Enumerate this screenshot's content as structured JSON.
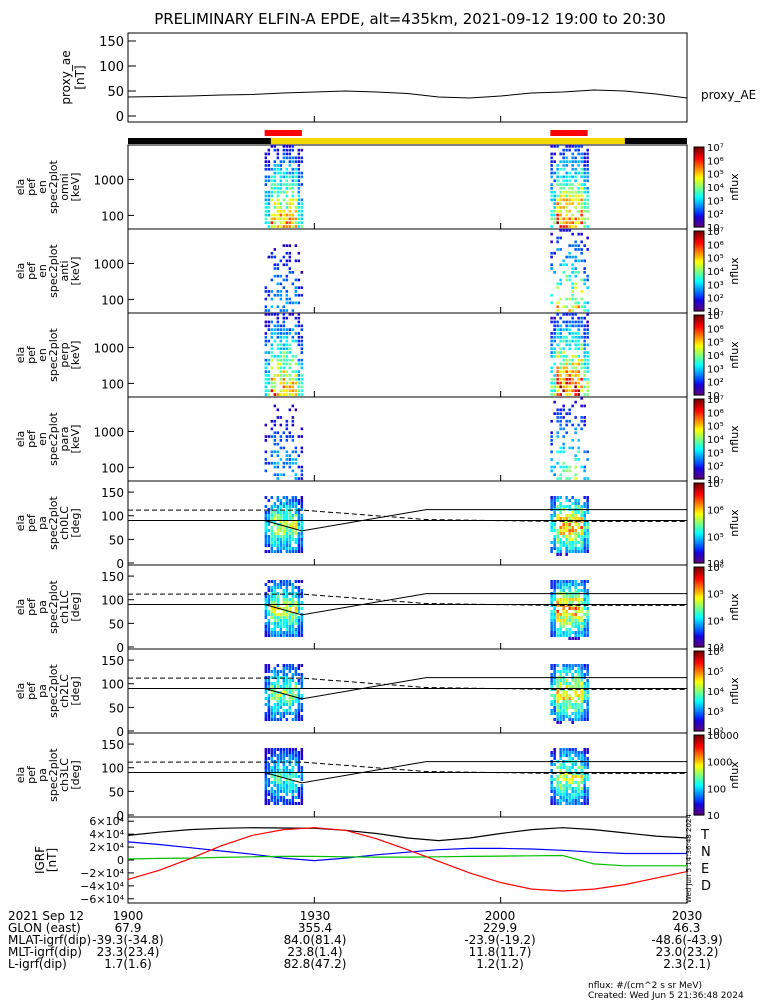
{
  "title": "PRELIMINARY ELFIN-A EPDE, alt=435km, 2021-09-12 19:00 to 20:30",
  "colors": {
    "ae_bar_black": "#000000",
    "ae_bar_yellow": "#f5d800",
    "sci_zone": "#ff0000",
    "T": "#000000",
    "N": "#0000ff",
    "E": "#00c000",
    "D": "#ff0000"
  },
  "chart_data": [
    {
      "type": "line",
      "panel": "proxy_ae",
      "ylabel_lines": [
        "proxy_ae",
        "[nT]"
      ],
      "yticks": [
        "0",
        "50",
        "100",
        "150"
      ],
      "ylim": [
        0,
        160
      ],
      "legend": "proxy_AE",
      "x": [
        0,
        5,
        10,
        15,
        20,
        25,
        30,
        35,
        40,
        45,
        50,
        55,
        60,
        65,
        70,
        75,
        80,
        85,
        90
      ],
      "values": [
        38,
        39,
        40,
        42,
        43,
        46,
        48,
        50,
        48,
        45,
        38,
        36,
        40,
        46,
        48,
        52,
        50,
        44,
        36
      ]
    },
    {
      "type": "heatmap",
      "panel": "en_omni",
      "ylabel_lines": [
        "ela",
        "pef",
        "en",
        "spec2plot",
        "omni",
        "[keV]"
      ],
      "yticks": [
        "100",
        "1000"
      ],
      "colorbar_ticks": [
        "10",
        "10²",
        "10³",
        "10⁴",
        "10⁵",
        "10⁶",
        "10⁷"
      ],
      "colorbar_label": "nflux",
      "intensity": [
        0.78,
        0.9
      ]
    },
    {
      "type": "heatmap",
      "panel": "en_anti",
      "ylabel_lines": [
        "ela",
        "pef",
        "en",
        "spec2plot",
        "anti",
        "[keV]"
      ],
      "yticks": [
        "100",
        "1000"
      ],
      "colorbar_ticks": [
        "10",
        "10²",
        "10³",
        "10⁴",
        "10⁵",
        "10⁶",
        "10⁷"
      ],
      "colorbar_label": "nflux",
      "intensity": [
        0.35,
        0.7
      ]
    },
    {
      "type": "heatmap",
      "panel": "en_perp",
      "ylabel_lines": [
        "ela",
        "pef",
        "en",
        "spec2plot",
        "perp",
        "[keV]"
      ],
      "yticks": [
        "100",
        "1000"
      ],
      "colorbar_ticks": [
        "10",
        "10²",
        "10³",
        "10⁴",
        "10⁵",
        "10⁶",
        "10⁷"
      ],
      "colorbar_label": "nflux",
      "intensity": [
        0.8,
        0.95
      ]
    },
    {
      "type": "heatmap",
      "panel": "en_para",
      "ylabel_lines": [
        "ela",
        "pef",
        "en",
        "spec2plot",
        "para",
        "[keV]"
      ],
      "yticks": [
        "100",
        "1000"
      ],
      "colorbar_ticks": [
        "10",
        "10²",
        "10³",
        "10⁴",
        "10⁵",
        "10⁶",
        "10⁷"
      ],
      "colorbar_label": "nflux",
      "intensity": [
        0.35,
        0.55
      ]
    },
    {
      "type": "heatmap",
      "panel": "ch0LC",
      "ylabel_lines": [
        "ela",
        "pef",
        "pa",
        "spec2plot",
        "ch0LC",
        "[deg]"
      ],
      "yticks": [
        "0",
        "50",
        "100",
        "150"
      ],
      "colorbar_ticks": [
        "10⁴",
        "10⁵",
        "10⁶",
        "10⁷"
      ],
      "colorbar_label": "nflux",
      "intensity": [
        0.6,
        0.75
      ]
    },
    {
      "type": "heatmap",
      "panel": "ch1LC",
      "ylabel_lines": [
        "ela",
        "pef",
        "pa",
        "spec2plot",
        "ch1LC",
        "[deg]"
      ],
      "yticks": [
        "0",
        "50",
        "100",
        "150"
      ],
      "colorbar_ticks": [
        "10³",
        "10⁴",
        "10⁵",
        "10⁶"
      ],
      "colorbar_label": "nflux",
      "intensity": [
        0.6,
        0.75
      ]
    },
    {
      "type": "heatmap",
      "panel": "ch2LC",
      "ylabel_lines": [
        "ela",
        "pef",
        "pa",
        "spec2plot",
        "ch2LC",
        "[deg]"
      ],
      "yticks": [
        "0",
        "50",
        "100",
        "150"
      ],
      "colorbar_ticks": [
        "10²",
        "10³",
        "10⁴",
        "10⁵",
        "10⁶"
      ],
      "colorbar_label": "nflux",
      "intensity": [
        0.55,
        0.7
      ]
    },
    {
      "type": "heatmap",
      "panel": "ch3LC",
      "ylabel_lines": [
        "ela",
        "pef",
        "pa",
        "spec2plot",
        "ch3LC",
        "[deg]"
      ],
      "yticks": [
        "0",
        "50",
        "100",
        "150"
      ],
      "colorbar_ticks": [
        "10",
        "100",
        "1000",
        "10000"
      ],
      "colorbar_label": "nflux",
      "intensity": [
        0.45,
        0.6
      ]
    },
    {
      "type": "line",
      "panel": "igrf",
      "ylabel_lines": [
        "IGRF",
        "[nT]"
      ],
      "yticks": [
        "−6×10⁴",
        "−4×10⁴",
        "−2×10⁴",
        "0",
        "2×10⁴",
        "4×10⁴",
        "6×10⁴"
      ],
      "ylim": [
        -65000,
        65000
      ],
      "legend": [
        "T",
        "N",
        "E",
        "D"
      ],
      "x": [
        0,
        5,
        10,
        15,
        20,
        25,
        30,
        35,
        40,
        45,
        50,
        55,
        60,
        65,
        70,
        75,
        80,
        85,
        90
      ],
      "series": [
        {
          "name": "T",
          "values": [
            38000,
            43000,
            47000,
            49000,
            50000,
            49500,
            49000,
            46000,
            41000,
            34000,
            30000,
            34000,
            41000,
            47000,
            50000,
            47000,
            42000,
            37000,
            34000
          ]
        },
        {
          "name": "N",
          "values": [
            28000,
            24000,
            19000,
            14000,
            9000,
            3000,
            -1000,
            3000,
            8000,
            12000,
            16000,
            18000,
            18000,
            17000,
            15000,
            12000,
            10000,
            10000,
            10000
          ]
        },
        {
          "name": "E",
          "values": [
            1500,
            2500,
            3000,
            4000,
            5000,
            5500,
            5500,
            5000,
            4500,
            4500,
            5000,
            5500,
            6000,
            6500,
            7000,
            -6000,
            -9000,
            -9000,
            -9000
          ]
        },
        {
          "name": "D",
          "values": [
            -30000,
            -16000,
            2000,
            22000,
            38000,
            47000,
            50000,
            46000,
            33000,
            16000,
            -2000,
            -20000,
            -35000,
            -45000,
            -48000,
            -45000,
            -38000,
            -28000,
            -18000
          ]
        }
      ]
    }
  ],
  "xticks": [
    "1900",
    "1930",
    "2000",
    "2030"
  ],
  "ephem": [
    {
      "label": "2021 Sep 12",
      "values": [
        "1900",
        "1930",
        "2000",
        "2030"
      ]
    },
    {
      "label": "GLON (east)",
      "values": [
        "67.9",
        "355.4",
        "229.9",
        "46.3"
      ]
    },
    {
      "label": "MLAT-igrf(dip)",
      "values": [
        "-39.3(-34.8)",
        "84.0(81.4)",
        "-23.9(-19.2)",
        "-48.6(-43.9)"
      ]
    },
    {
      "label": "MLT-igrf(dip)",
      "values": [
        "23.3(23.4)",
        "23.8(1.4)",
        "11.8(11.7)",
        "23.0(23.2)"
      ]
    },
    {
      "label": "L-igrf(dip)",
      "values": [
        "1.7(1.6)",
        "82.8(47.2)",
        "1.2(1.2)",
        "2.3(2.1)"
      ]
    }
  ],
  "footer": {
    "units": "nflux: #/(cm^2 s sr MeV)",
    "created": "Created: Wed Jun  5 21:36:48 2024",
    "stamp": "Wed Jun  5 14:36:48 2024"
  }
}
